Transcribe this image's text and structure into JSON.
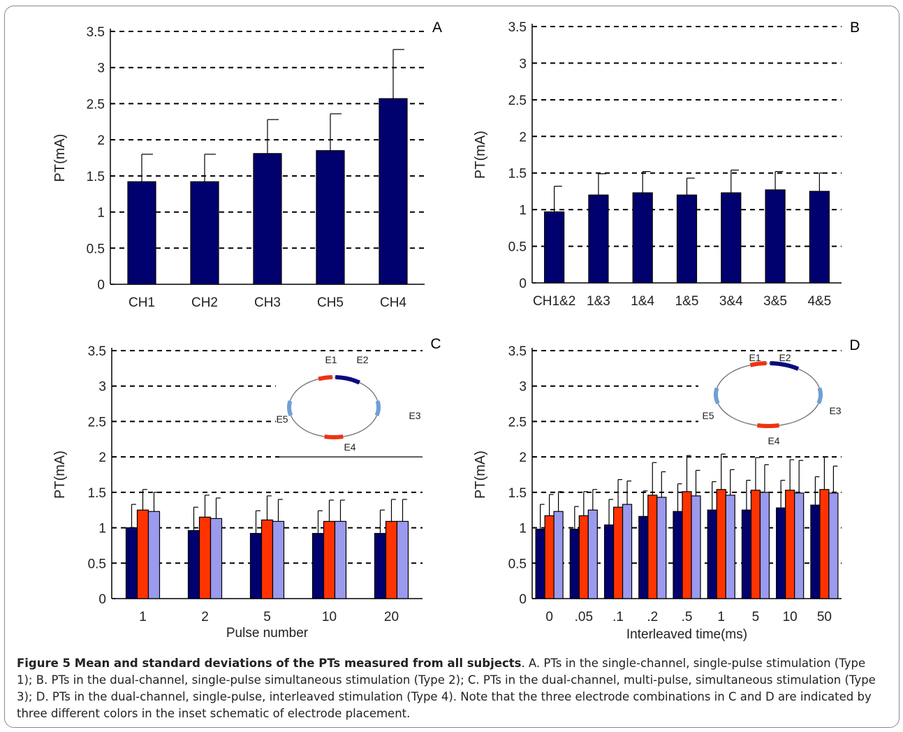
{
  "colors": {
    "series1": "#00006e",
    "series2": "#ff3300",
    "series3": "#9a9aee",
    "grid": "#000000",
    "electrode_red": "#ee3311",
    "electrode_navy": "#0a0a80",
    "electrode_lightblue": "#6f9fd6"
  },
  "chart_data": [
    {
      "panel": "A",
      "type": "bar",
      "ylabel": "PT(mA)",
      "xlabel": "",
      "ylim": [
        0,
        3.5
      ],
      "yticks": [
        "0",
        "0.5",
        "1",
        "1.5",
        "2",
        "2.5",
        "3",
        "3.5"
      ],
      "grid": "dashed horizontal",
      "categories": [
        "CH1",
        "CH2",
        "CH3",
        "CH5",
        "CH4"
      ],
      "series": [
        {
          "values": [
            1.42,
            1.42,
            1.81,
            1.85,
            2.57
          ],
          "errors": [
            0.38,
            0.38,
            0.47,
            0.51,
            0.68
          ]
        }
      ]
    },
    {
      "panel": "B",
      "type": "bar",
      "ylabel": "PT(mA)",
      "xlabel": "",
      "ylim": [
        0,
        3.5
      ],
      "yticks": [
        "0",
        "0.5",
        "1",
        "1.5",
        "2",
        "2.5",
        "3",
        "3.5"
      ],
      "grid": "dashed horizontal",
      "categories": [
        "CH1&2",
        "1&3",
        "1&4",
        "1&5",
        "3&4",
        "3&5",
        "4&5"
      ],
      "series": [
        {
          "values": [
            0.97,
            1.2,
            1.23,
            1.2,
            1.23,
            1.27,
            1.25
          ],
          "errors": [
            0.35,
            0.29,
            0.29,
            0.23,
            0.31,
            0.25,
            0.25
          ]
        }
      ]
    },
    {
      "panel": "C",
      "type": "bar",
      "ylabel": "PT(mA)",
      "xlabel": "Pulse number",
      "ylim": [
        0,
        3.5
      ],
      "yticks": [
        "0",
        "0.5",
        "1",
        "1.5",
        "2",
        "2.5",
        "3",
        "3.5"
      ],
      "grid": "dashed horizontal",
      "categories": [
        "1",
        "2",
        "5",
        "10",
        "20"
      ],
      "series": [
        {
          "values": [
            1.0,
            0.96,
            0.92,
            0.92,
            0.92
          ],
          "errors": [
            0.33,
            0.33,
            0.32,
            0.32,
            0.33
          ]
        },
        {
          "values": [
            1.25,
            1.15,
            1.11,
            1.09,
            1.09
          ],
          "errors": [
            0.29,
            0.31,
            0.34,
            0.3,
            0.31
          ]
        },
        {
          "values": [
            1.23,
            1.13,
            1.09,
            1.09,
            1.09
          ],
          "errors": [
            0.27,
            0.29,
            0.31,
            0.3,
            0.31
          ]
        }
      ],
      "inset": {
        "electrodes": [
          "E1",
          "E2",
          "E3",
          "E4",
          "E5"
        ]
      }
    },
    {
      "panel": "D",
      "type": "bar",
      "ylabel": "PT(mA)",
      "xlabel": "Interleaved time(ms)",
      "ylim": [
        0,
        3.5
      ],
      "yticks": [
        "0",
        "0.5",
        "1",
        "1.5",
        "2",
        "2.5",
        "3",
        "3.5"
      ],
      "grid": "dashed horizontal",
      "categories": [
        "0",
        ".05",
        ".1",
        ".2",
        ".5",
        "1",
        "5",
        "10",
        "50"
      ],
      "series": [
        {
          "values": [
            0.98,
            0.98,
            1.04,
            1.16,
            1.23,
            1.25,
            1.25,
            1.28,
            1.32
          ],
          "errors": [
            0.35,
            0.32,
            0.36,
            0.36,
            0.39,
            0.4,
            0.42,
            0.39,
            0.4
          ]
        },
        {
          "values": [
            1.17,
            1.17,
            1.29,
            1.46,
            1.51,
            1.54,
            1.53,
            1.53,
            1.54
          ],
          "errors": [
            0.3,
            0.34,
            0.39,
            0.46,
            0.51,
            0.5,
            0.46,
            0.43,
            0.46
          ]
        },
        {
          "values": [
            1.23,
            1.25,
            1.33,
            1.43,
            1.45,
            1.46,
            1.5,
            1.49,
            1.49
          ],
          "errors": [
            0.28,
            0.29,
            0.33,
            0.36,
            0.36,
            0.36,
            0.39,
            0.46,
            0.38
          ]
        }
      ],
      "inset": {
        "electrodes": [
          "E1",
          "E2",
          "E3",
          "E4",
          "E5"
        ]
      }
    }
  ],
  "caption": {
    "title": "Figure 5 Mean and standard deviations of the PTs measured from all subjects",
    "text": ". A. PTs in the single-channel, single-pulse stimulation (Type 1); B. PTs in the dual-channel, single-pulse simultaneous stimulation (Type 2); C. PTs in the dual-channel, multi-pulse, simultaneous stimulation (Type 3); D. PTs in the dual-channel, single-pulse, interleaved stimulation (Type 4). Note that the three electrode combinations in C and D are indicated by three different colors in the inset schematic of electrode placement."
  }
}
